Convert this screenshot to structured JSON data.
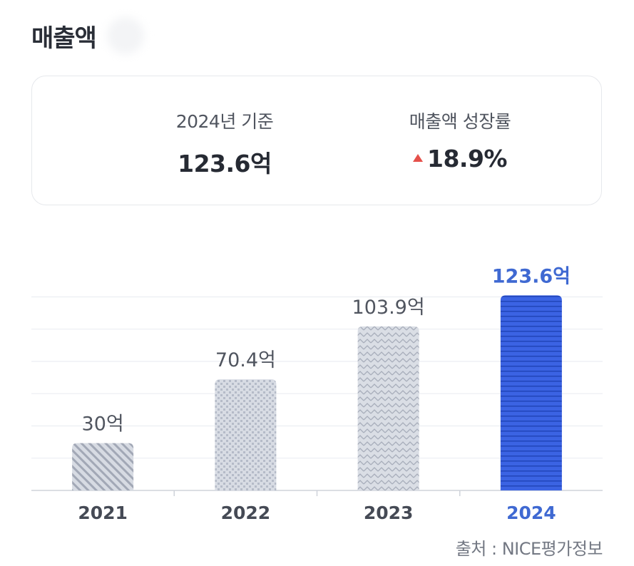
{
  "header": {
    "title": "매출액"
  },
  "summary": {
    "base_label": "2024년 기준",
    "base_value": "123.6억",
    "growth_label": "매출액 성장률",
    "growth_value": "18.9%",
    "growth_direction": "up"
  },
  "colors": {
    "accent": "#3b63e3",
    "label_accent": "#3f69d2",
    "gray_bar": "#d5d9e2",
    "up_arrow": "#e5504a"
  },
  "chart_data": {
    "type": "bar",
    "categories": [
      "2021",
      "2022",
      "2023",
      "2024"
    ],
    "values": [
      30,
      70.4,
      103.9,
      123.6
    ],
    "value_labels": [
      "30억",
      "70.4억",
      "103.9억",
      "123.6억"
    ],
    "patterns": [
      "diagonal-stripes",
      "dots",
      "zigzag",
      "horizontal-stripes"
    ],
    "highlight_index": 3,
    "ylim": [
      0,
      140
    ],
    "grid": true
  },
  "source": "출처 : NICE평가정보"
}
